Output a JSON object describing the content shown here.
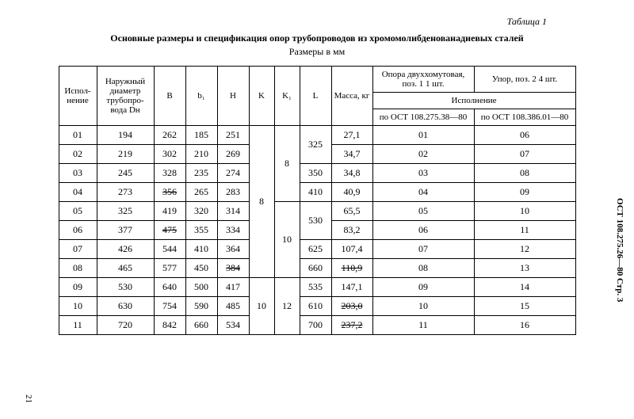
{
  "labels": {
    "table_label": "Таблица 1",
    "title": "Основные размеры и спецификация опор трубопроводов из хромомолибденованадиевых сталей",
    "subtitle": "Размеры в мм",
    "side_right": "ОСТ 108.275.26—80 Стр. 3",
    "page_num": "21"
  },
  "headers": {
    "exec": "Испол-\nнение",
    "dn": "Наружный\nдиаметр\nтрубопро-\nвода Dн",
    "B": "B",
    "b1": "b₁",
    "H": "H",
    "K": "K",
    "K1": "K₁",
    "L": "L",
    "mass": "Масса,\nкг",
    "clamp": "Опора двуххомутовая,\nпоз. 1\n1 шт.",
    "stop": "Упор, поз. 2\n4 шт.",
    "version": "Исполнение",
    "ost1": "по ОСТ 108.275.38—80",
    "ost2": "по ОСТ 108.386.01—80"
  },
  "rows": [
    {
      "ex": "01",
      "dn": "194",
      "B": "262",
      "b1": "185",
      "H": "251",
      "mass": "27,1",
      "o1": "01",
      "o2": "06"
    },
    {
      "ex": "02",
      "dn": "219",
      "B": "302",
      "b1": "210",
      "H": "269",
      "mass": "34,7",
      "o1": "02",
      "o2": "07"
    },
    {
      "ex": "03",
      "dn": "245",
      "B": "328",
      "b1": "235",
      "H": "274",
      "mass": "34,8",
      "o1": "03",
      "o2": "08"
    },
    {
      "ex": "04",
      "dn": "273",
      "B": "356",
      "b1": "265",
      "H": "283",
      "mass": "40,9",
      "o1": "04",
      "o2": "09"
    },
    {
      "ex": "05",
      "dn": "325",
      "B": "419",
      "b1": "320",
      "H": "314",
      "mass": "65,5",
      "o1": "05",
      "o2": "10"
    },
    {
      "ex": "06",
      "dn": "377",
      "B": "475",
      "b1": "355",
      "H": "334",
      "mass": "83,2",
      "o1": "06",
      "o2": "11"
    },
    {
      "ex": "07",
      "dn": "426",
      "B": "544",
      "b1": "410",
      "H": "364",
      "mass": "107,4",
      "o1": "07",
      "o2": "12"
    },
    {
      "ex": "08",
      "dn": "465",
      "B": "577",
      "b1": "450",
      "H": "384",
      "mass": "110,9",
      "o1": "08",
      "o2": "13"
    },
    {
      "ex": "09",
      "dn": "530",
      "B": "640",
      "b1": "500",
      "H": "417",
      "mass": "147,1",
      "o1": "09",
      "o2": "14"
    },
    {
      "ex": "10",
      "dn": "630",
      "B": "754",
      "b1": "590",
      "H": "485",
      "mass": "203,0",
      "o1": "10",
      "o2": "15"
    },
    {
      "ex": "11",
      "dn": "720",
      "B": "842",
      "b1": "660",
      "H": "534",
      "mass": "237,2",
      "o1": "11",
      "o2": "16"
    }
  ],
  "merged": {
    "K_top": "8",
    "K_bot": "10",
    "K1_a": "8",
    "K1_b": "10",
    "K1_c": "12",
    "L_a": "325",
    "L_b": "350",
    "L_c": "410",
    "L_d": "530",
    "L_e": "625",
    "L_f": "660",
    "L_g": "535",
    "L_h": "610",
    "L_i": "700"
  }
}
